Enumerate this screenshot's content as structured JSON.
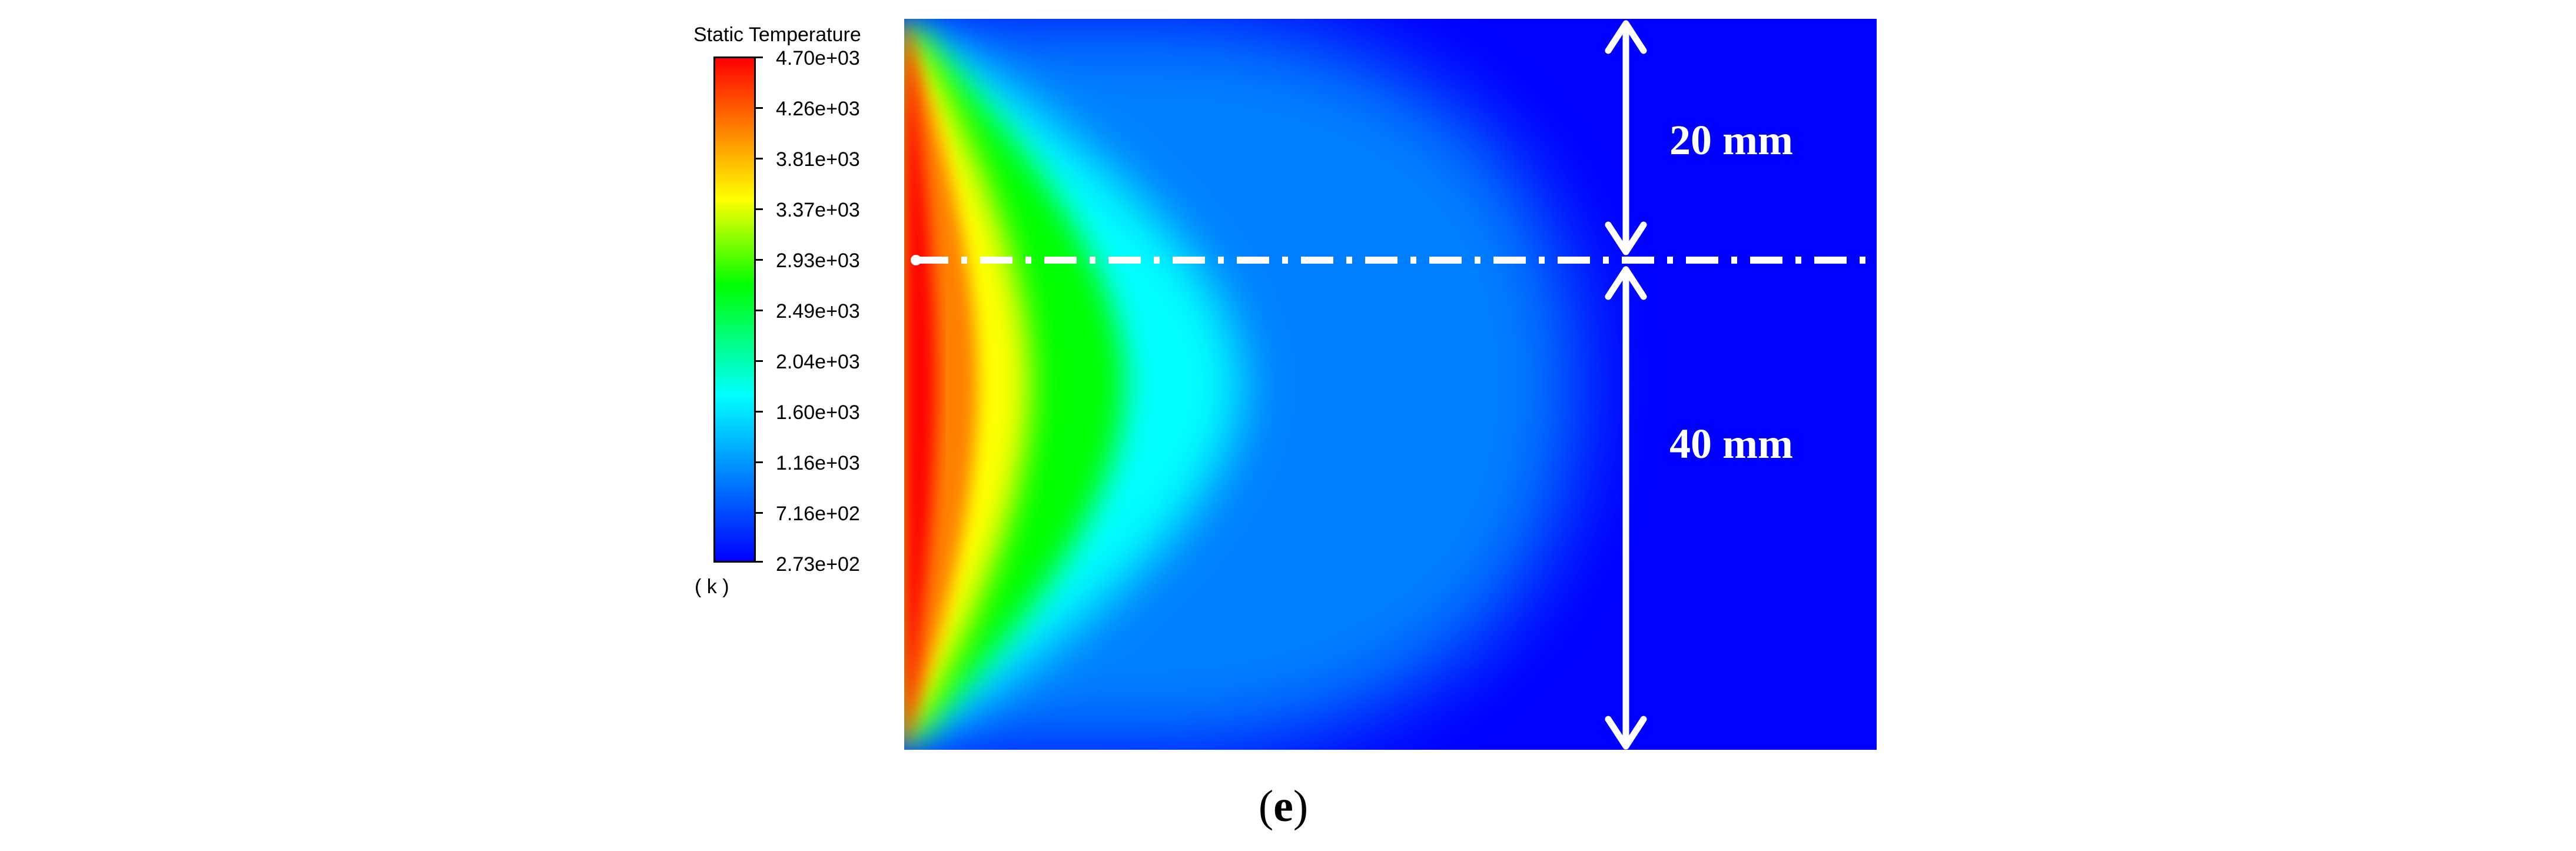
{
  "legend": {
    "title": "Static Temperature",
    "unit": "( k )",
    "ticks": [
      "4.70e+03",
      "4.26e+03",
      "3.81e+03",
      "3.37e+03",
      "2.93e+03",
      "2.49e+03",
      "2.04e+03",
      "1.60e+03",
      "1.16e+03",
      "7.16e+02",
      "2.73e+02"
    ],
    "colors": {
      "max": "#ff0000",
      "mid": "#00ff00",
      "min": "#0000ff"
    }
  },
  "dimensions": {
    "upper": "20 mm",
    "lower": "40 mm"
  },
  "panel": {
    "open": "(",
    "letter": "e",
    "close": ")"
  }
}
